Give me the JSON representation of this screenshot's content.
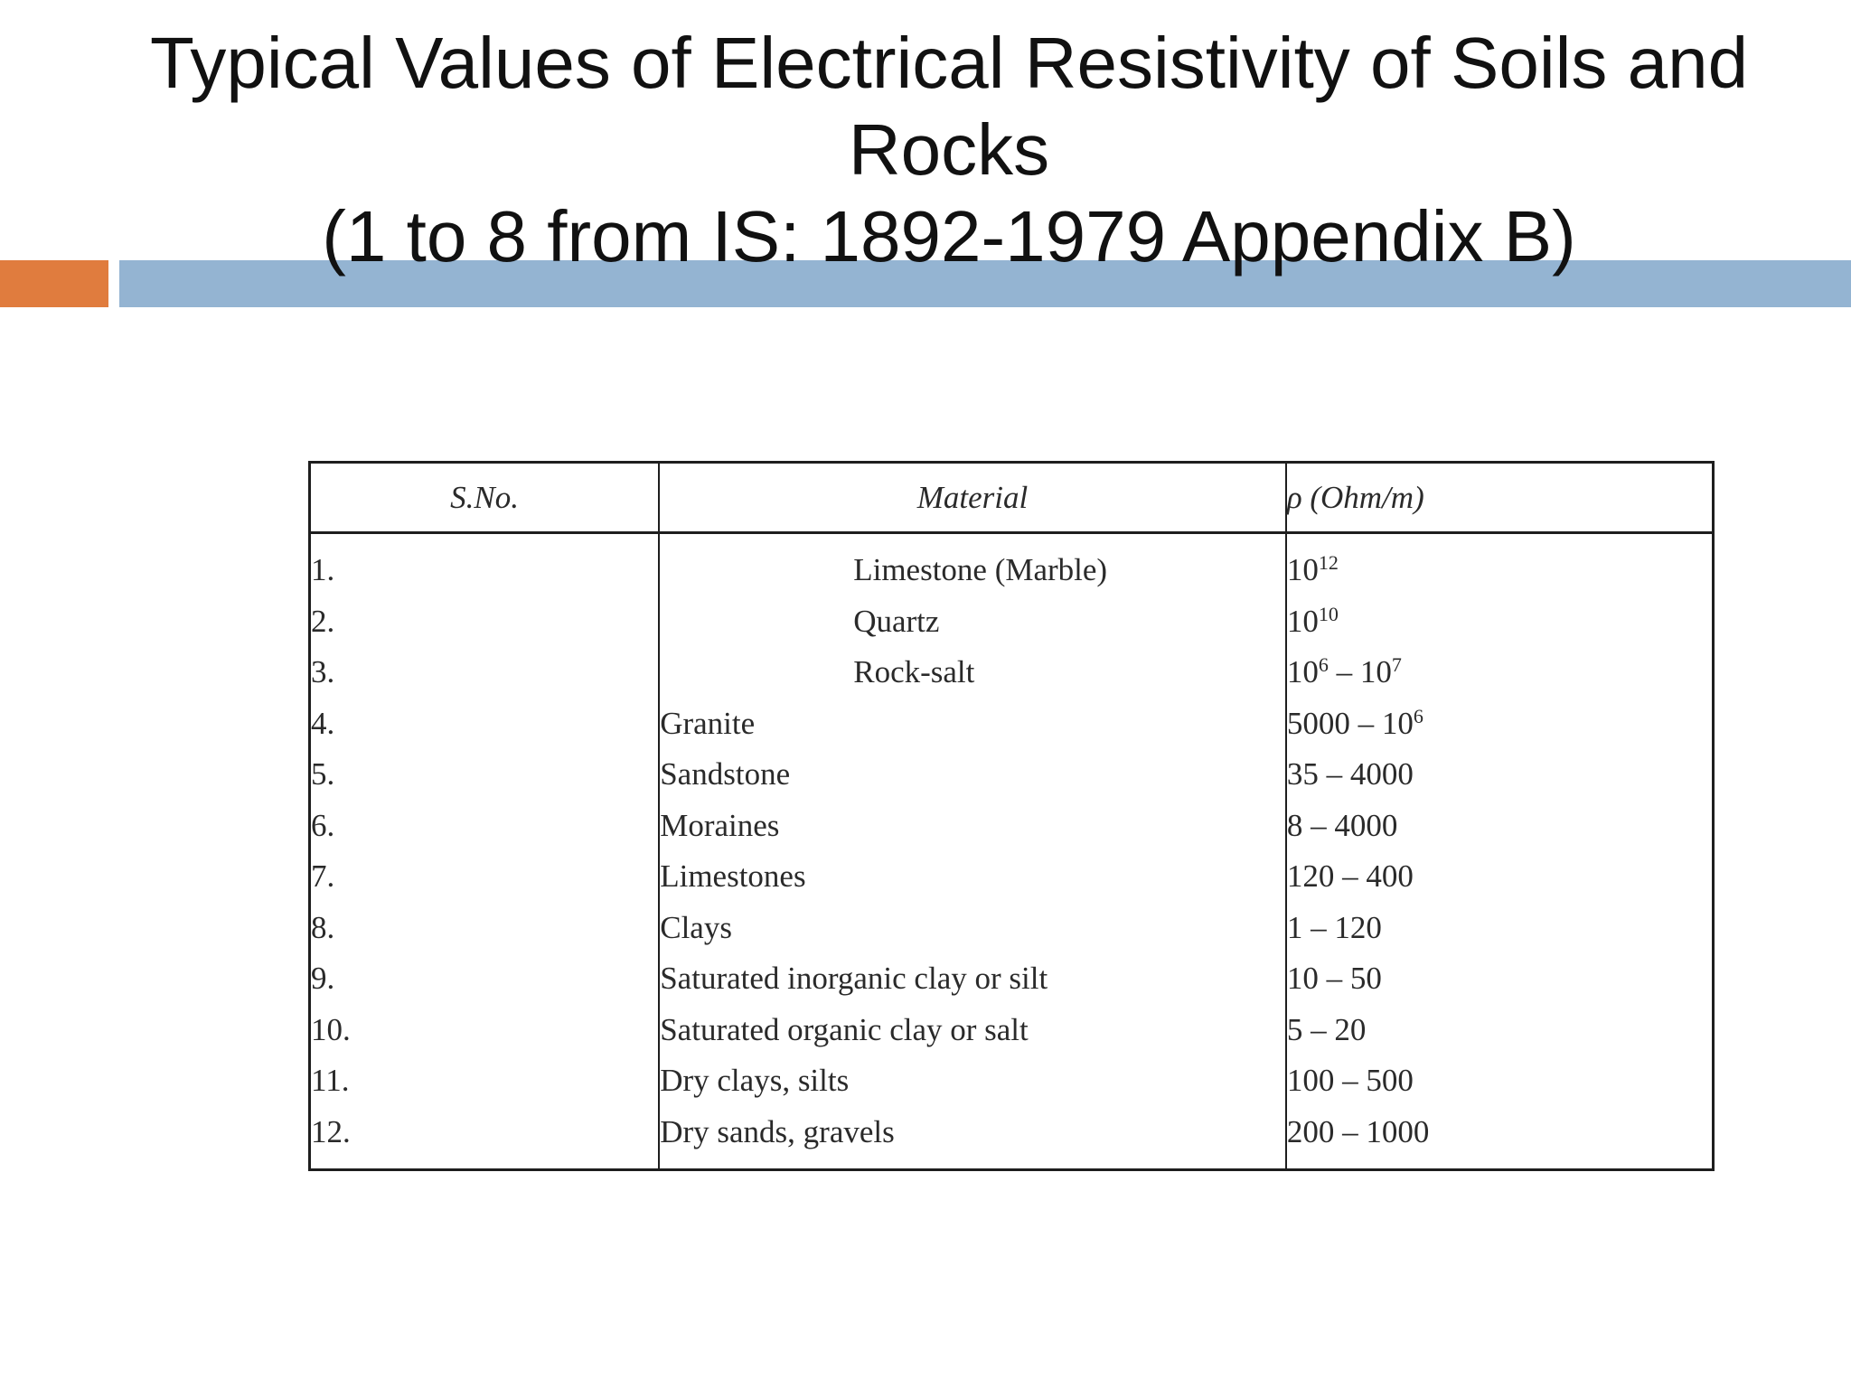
{
  "slide": {
    "title_lines": [
      "Typical Values of Electrical Resistivity of Soils and",
      "Rocks",
      "(1 to 8 from IS: 1892-1979 Appendix B)"
    ],
    "accent_colors": {
      "orange": "#e07c3e",
      "blue": "#94b4d2"
    }
  },
  "table": {
    "headers": {
      "sno": "S.No.",
      "material": "Material",
      "rho": "ρ (Ohm/m)"
    },
    "rows": [
      {
        "sno": "1.",
        "material": "Limestone (Marble)",
        "rho_base": "10",
        "rho_exp": "12",
        "rho_mid": "",
        "rho_base2": "",
        "rho_exp2": "",
        "rho_plain": ""
      },
      {
        "sno": "2.",
        "material": "Quartz",
        "rho_base": "10",
        "rho_exp": "10",
        "rho_mid": "",
        "rho_base2": "",
        "rho_exp2": "",
        "rho_plain": ""
      },
      {
        "sno": "3.",
        "material": "Rock-salt",
        "rho_base": "10",
        "rho_exp": "6",
        "rho_mid": " – ",
        "rho_base2": "10",
        "rho_exp2": "7",
        "rho_plain": ""
      },
      {
        "sno": "4.",
        "material": "Granite",
        "rho_base": "",
        "rho_exp": "",
        "rho_mid": "5000 – ",
        "rho_base2": "10",
        "rho_exp2": "6",
        "rho_plain": ""
      },
      {
        "sno": "5.",
        "material": "Sandstone",
        "rho_plain": "35 – 4000"
      },
      {
        "sno": "6.",
        "material": "Moraines",
        "rho_plain": "8 – 4000"
      },
      {
        "sno": "7.",
        "material": "Limestones",
        "rho_plain": "120 – 400"
      },
      {
        "sno": "8.",
        "material": "Clays",
        "rho_plain": "1 – 120"
      },
      {
        "sno": "9.",
        "material": "Saturated inorganic clay or silt",
        "rho_plain": "10 – 50"
      },
      {
        "sno": "10.",
        "material": "Saturated organic clay or salt",
        "rho_plain": "5 – 20"
      },
      {
        "sno": "11.",
        "material": "Dry clays, silts",
        "rho_plain": "100 – 500"
      },
      {
        "sno": "12.",
        "material": "Dry sands, gravels",
        "rho_plain": "200 – 1000"
      }
    ]
  }
}
